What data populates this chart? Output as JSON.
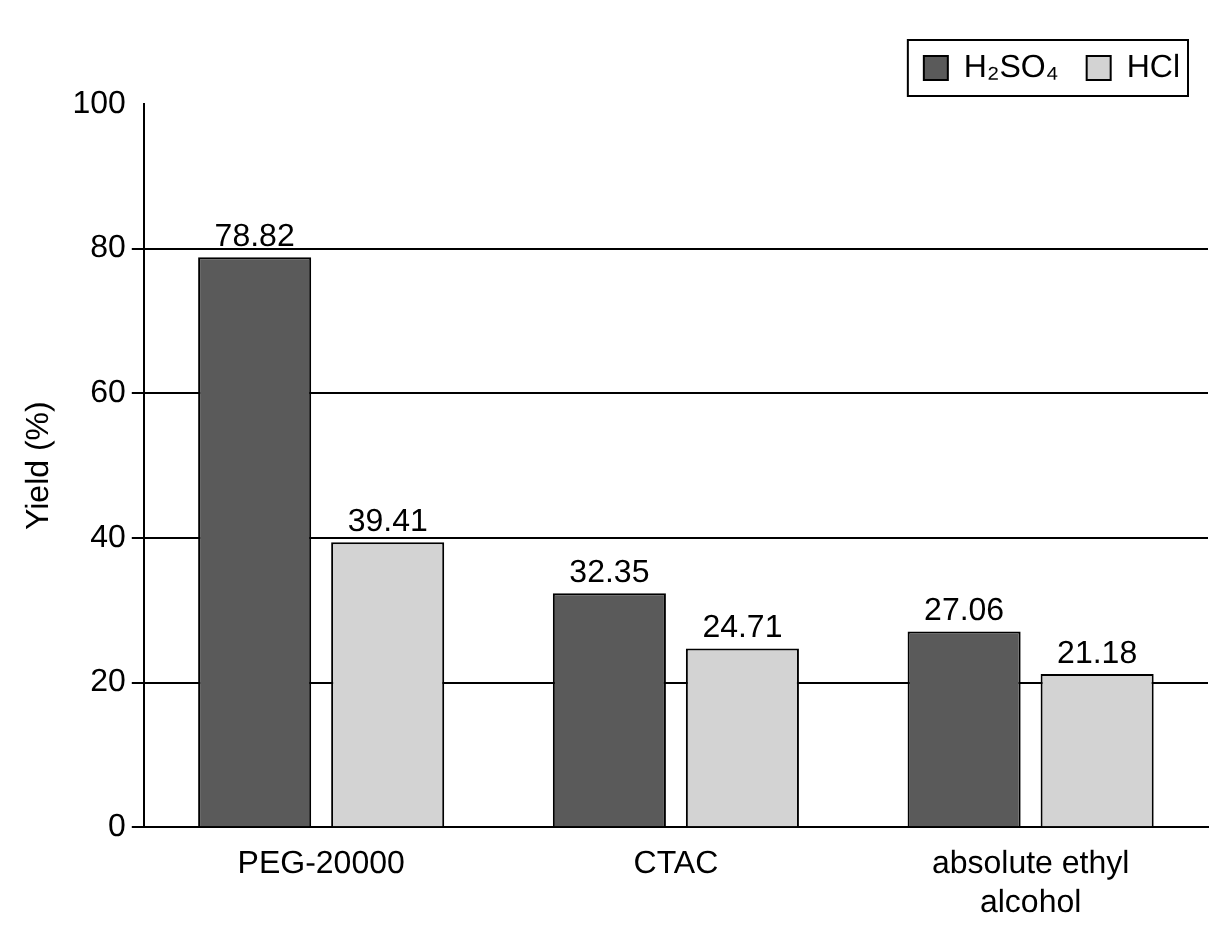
{
  "chart_data": {
    "type": "bar",
    "ylabel": "Yield (%)",
    "categories": [
      "PEG-20000",
      "CTAC",
      "absolute ethyl alcohol"
    ],
    "series": [
      {
        "name": "H₂SO₄",
        "color": "#5a5a5a",
        "values": [
          78.82,
          32.35,
          27.06
        ]
      },
      {
        "name": "HCl",
        "color": "#d3d3d3",
        "values": [
          39.41,
          24.71,
          21.18
        ]
      }
    ],
    "ylim": [
      0,
      100
    ],
    "yticks": [
      0,
      20,
      40,
      60,
      80,
      100
    ],
    "grid": "y",
    "legend": "top right",
    "data_labels": true
  }
}
